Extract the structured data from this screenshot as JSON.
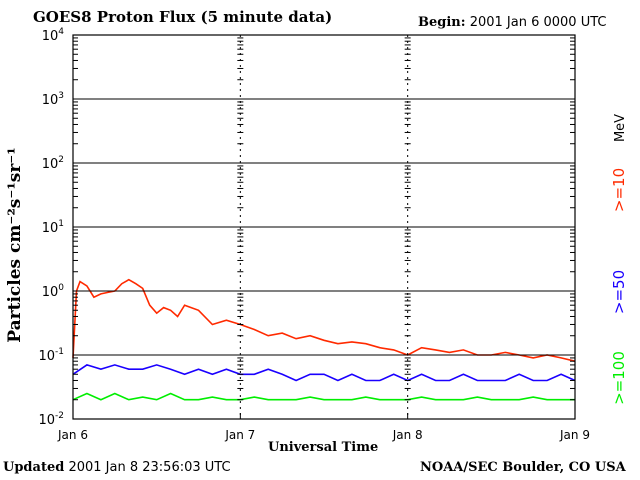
{
  "header": {
    "title": "GOES8 Proton Flux (5 minute data)",
    "begin_label": "Begin:",
    "begin_value": "2001 Jan 6 0000 UTC"
  },
  "footer": {
    "updated_label": "Updated",
    "updated_value": "2001 Jan  8 23:56:03 UTC",
    "credit": "NOAA/SEC Boulder, CO USA"
  },
  "chart_data": {
    "type": "line",
    "title": "GOES8 Proton Flux (5 minute data)",
    "xlabel": "Universal Time",
    "ylabel": "Particles cm⁻²s⁻¹sr⁻¹",
    "y_scale": "log",
    "ylim": [
      0.01,
      10000
    ],
    "y_ticks": [
      {
        "base": "10",
        "exp": "-2"
      },
      {
        "base": "10",
        "exp": "-1"
      },
      {
        "base": "10",
        "exp": "0"
      },
      {
        "base": "10",
        "exp": "1"
      },
      {
        "base": "10",
        "exp": "2"
      },
      {
        "base": "10",
        "exp": "3"
      },
      {
        "base": "10",
        "exp": "4"
      }
    ],
    "x_ticks": [
      "Jan 6",
      "Jan 7",
      "Jan 8",
      "Jan 9"
    ],
    "xlim_hours": [
      0,
      72
    ],
    "grid": true,
    "legend_placement": "right",
    "legend_unit": "MeV",
    "series": [
      {
        "name": ">=10",
        "color": "#ff2a00",
        "x_hours": [
          0,
          0.5,
          1,
          2,
          3,
          4,
          5,
          6,
          7,
          8,
          9,
          10,
          11,
          12,
          13,
          14,
          15,
          16,
          18,
          20,
          22,
          24,
          26,
          28,
          30,
          32,
          34,
          36,
          38,
          40,
          42,
          44,
          46,
          48,
          50,
          52,
          54,
          56,
          58,
          60,
          62,
          64,
          66,
          68,
          70,
          72
        ],
        "values": [
          0.09,
          1.0,
          1.4,
          1.2,
          0.8,
          0.9,
          0.95,
          1.0,
          1.3,
          1.5,
          1.3,
          1.1,
          0.6,
          0.45,
          0.55,
          0.5,
          0.4,
          0.6,
          0.5,
          0.3,
          0.35,
          0.3,
          0.25,
          0.2,
          0.22,
          0.18,
          0.2,
          0.17,
          0.15,
          0.16,
          0.15,
          0.13,
          0.12,
          0.1,
          0.13,
          0.12,
          0.11,
          0.12,
          0.1,
          0.1,
          0.11,
          0.1,
          0.09,
          0.1,
          0.09,
          0.08
        ]
      },
      {
        "name": ">=50",
        "color": "#1a00ff",
        "x_hours": [
          0,
          2,
          4,
          6,
          8,
          10,
          12,
          14,
          16,
          18,
          20,
          22,
          24,
          26,
          28,
          30,
          32,
          34,
          36,
          38,
          40,
          42,
          44,
          46,
          48,
          50,
          52,
          54,
          56,
          58,
          60,
          62,
          64,
          66,
          68,
          70,
          72
        ],
        "values": [
          0.05,
          0.07,
          0.06,
          0.07,
          0.06,
          0.06,
          0.07,
          0.06,
          0.05,
          0.06,
          0.05,
          0.06,
          0.05,
          0.05,
          0.06,
          0.05,
          0.04,
          0.05,
          0.05,
          0.04,
          0.05,
          0.04,
          0.04,
          0.05,
          0.04,
          0.05,
          0.04,
          0.04,
          0.05,
          0.04,
          0.04,
          0.04,
          0.05,
          0.04,
          0.04,
          0.05,
          0.04
        ]
      },
      {
        "name": ">=100",
        "color": "#00ee00",
        "x_hours": [
          0,
          2,
          4,
          6,
          8,
          10,
          12,
          14,
          16,
          18,
          20,
          22,
          24,
          26,
          28,
          30,
          32,
          34,
          36,
          38,
          40,
          42,
          44,
          46,
          48,
          50,
          52,
          54,
          56,
          58,
          60,
          62,
          64,
          66,
          68,
          70,
          72
        ],
        "values": [
          0.02,
          0.025,
          0.02,
          0.025,
          0.02,
          0.022,
          0.02,
          0.025,
          0.02,
          0.02,
          0.022,
          0.02,
          0.02,
          0.022,
          0.02,
          0.02,
          0.02,
          0.022,
          0.02,
          0.02,
          0.02,
          0.022,
          0.02,
          0.02,
          0.02,
          0.022,
          0.02,
          0.02,
          0.02,
          0.022,
          0.02,
          0.02,
          0.02,
          0.022,
          0.02,
          0.02,
          0.02
        ]
      }
    ]
  }
}
